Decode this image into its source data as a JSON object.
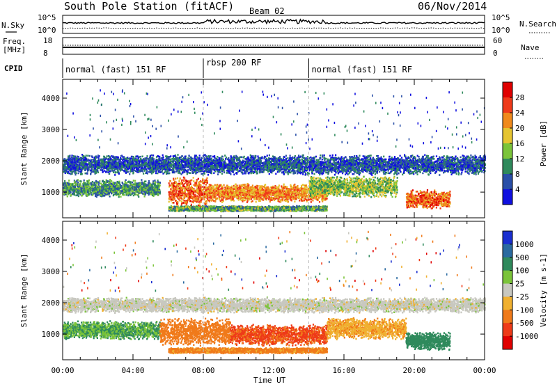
{
  "header": {
    "station": "South Pole Station",
    "mode": "(fitACF)",
    "beam": "Beam 02",
    "date": "06/Nov/2014"
  },
  "noise_panel": {
    "left_label": "N.Sky",
    "right_label": "N.Search",
    "left_ticks": [
      "10^5",
      "10^0"
    ],
    "right_ticks": [
      "10^5",
      "10^0"
    ],
    "sky_series": "solid",
    "search_series": "dotted"
  },
  "freq_panel": {
    "left_label_1": "Freq.",
    "left_label_2": "[MHz]",
    "right_label": "Nave",
    "left_ticks": [
      "18",
      "8"
    ],
    "right_ticks": [
      "60",
      "0"
    ]
  },
  "cpid": {
    "label": "CPID",
    "segments": [
      {
        "label": "normal (fast) 151 RF",
        "start_hour": 0,
        "end_hour": 8.0
      },
      {
        "label": "rbsp 200 RF",
        "start_hour": 8.0,
        "end_hour": 14.0
      },
      {
        "label": "normal (fast) 151 RF",
        "start_hour": 14.0,
        "end_hour": 24
      }
    ]
  },
  "chart_data": [
    {
      "type": "heatmap",
      "title": "Power",
      "ylabel": "Slant Range [km]",
      "xlabel": "Time UT",
      "x_ticks": [
        "00:00",
        "04:00",
        "08:00",
        "12:00",
        "16:00",
        "20:00",
        "00:00"
      ],
      "y_ticks": [
        1000,
        2000,
        3000,
        4000
      ],
      "ylim": [
        180,
        4600
      ],
      "xlim_hours": [
        0,
        24
      ],
      "colorbar_label": "Power [dB]",
      "colorbar_ticks": [
        4,
        8,
        12,
        16,
        20,
        24,
        28
      ],
      "colorbar_colors": [
        "#1010e0",
        "#2a4fa8",
        "#2f8a5c",
        "#7bc43a",
        "#e6c531",
        "#f08a1c",
        "#ef3a1a",
        "#e00000"
      ],
      "scatter_bands": [
        {
          "t0": 0,
          "t1": 24,
          "r": 1900,
          "spread": 330,
          "value": 6
        },
        {
          "t0": 0,
          "t1": 5.5,
          "r": 1150,
          "spread": 280,
          "value": 10
        },
        {
          "t0": 6.0,
          "t1": 8.2,
          "r": 1050,
          "spread": 500,
          "value": 24
        },
        {
          "t0": 8.2,
          "t1": 15.0,
          "r": 1000,
          "spread": 300,
          "value": 22
        },
        {
          "t0": 14.0,
          "t1": 19.0,
          "r": 1200,
          "spread": 350,
          "value": 14
        },
        {
          "t0": 19.5,
          "t1": 22.0,
          "r": 800,
          "spread": 300,
          "value": 24
        },
        {
          "t0": 6.0,
          "t1": 15.0,
          "r": 500,
          "spread": 90,
          "value": 12
        }
      ]
    },
    {
      "type": "heatmap",
      "title": "Velocity",
      "ylabel": "Slant Range [km]",
      "xlabel": "Time UT",
      "x_ticks": [
        "00:00",
        "04:00",
        "08:00",
        "12:00",
        "16:00",
        "20:00",
        "00:00"
      ],
      "y_ticks": [
        1000,
        2000,
        3000,
        4000
      ],
      "ylim": [
        180,
        4600
      ],
      "xlim_hours": [
        0,
        24
      ],
      "colorbar_label": "Velocity [m s-1]",
      "colorbar_ticks": [
        "1000",
        "500",
        "100",
        "25",
        "-25",
        "-100",
        "-500",
        "-1000"
      ],
      "colorbar_colors": [
        "#1a2fd0",
        "#2a6aa0",
        "#2f8a5c",
        "#7bc43a",
        "#c8c8c0",
        "#f0b030",
        "#f07a1a",
        "#ee3a18",
        "#e00000"
      ],
      "scatter_bands": [
        {
          "t0": 0,
          "t1": 24,
          "r": 1950,
          "spread": 250,
          "value": 0
        },
        {
          "t0": 0,
          "t1": 5.5,
          "r": 1150,
          "spread": 300,
          "value": 100
        },
        {
          "t0": 5.5,
          "t1": 9.5,
          "r": 1100,
          "spread": 450,
          "value": -300
        },
        {
          "t0": 9.5,
          "t1": 15.0,
          "r": 1000,
          "spread": 350,
          "value": -600
        },
        {
          "t0": 15.0,
          "t1": 19.5,
          "r": 1200,
          "spread": 350,
          "value": -80
        },
        {
          "t0": 19.5,
          "t1": 22.0,
          "r": 800,
          "spread": 300,
          "value": 300
        },
        {
          "t0": 6.0,
          "t1": 15.0,
          "r": 500,
          "spread": 90,
          "value": -150
        }
      ]
    }
  ]
}
